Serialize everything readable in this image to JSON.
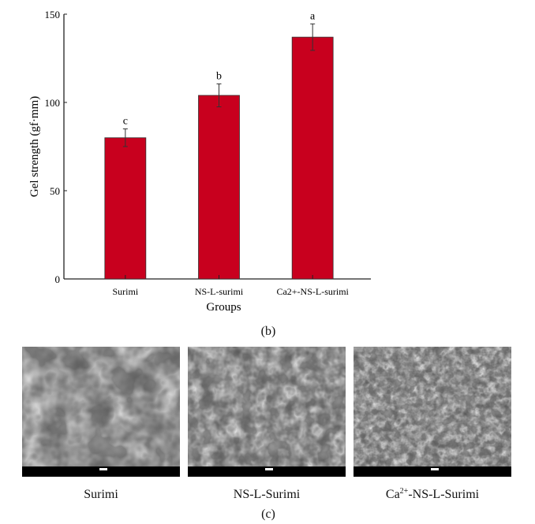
{
  "chart_data": {
    "type": "bar",
    "categories": [
      "Surimi",
      "NS-L-surimi",
      "Ca2+-NS-L-surimi"
    ],
    "values": [
      80,
      104,
      137
    ],
    "errors": [
      5,
      6.5,
      7.5
    ],
    "significance_letters": [
      "c",
      "b",
      "a"
    ],
    "xlabel": "Groups",
    "ylabel": "Gel strength (gf·mm)",
    "ylim": [
      0,
      150
    ],
    "yticks": [
      0,
      50,
      100,
      150
    ],
    "bar_color": "#c8001e",
    "grid": false,
    "panel_label": "(b)"
  },
  "sem_panel": {
    "label": "(c)",
    "images": [
      {
        "caption": "Surimi",
        "texture": "coarse-sheets"
      },
      {
        "caption": "NS-L-Surimi",
        "texture": "porous"
      },
      {
        "caption_main": "Ca",
        "caption_sup": "2+",
        "caption_rest": "-NS-L-Surimi",
        "texture": "fine-dense"
      }
    ]
  }
}
